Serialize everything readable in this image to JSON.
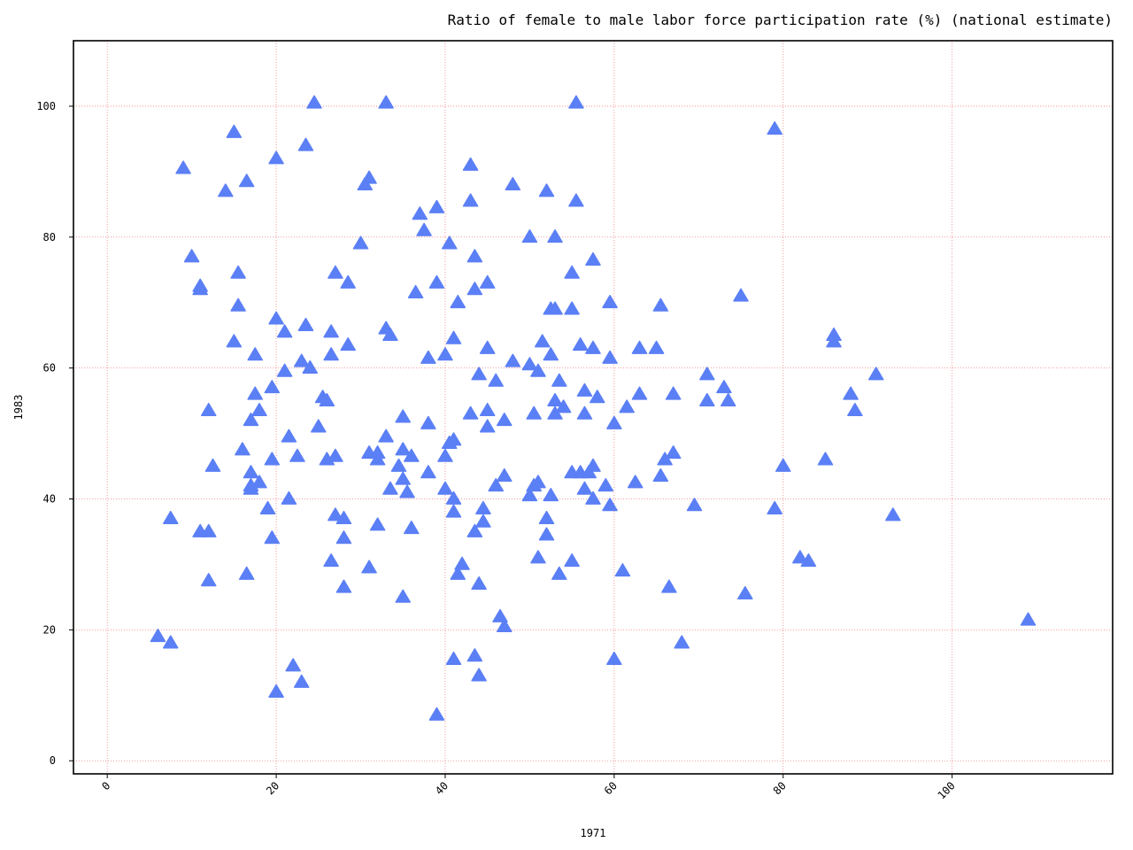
{
  "chart_data": {
    "type": "scatter",
    "title": "Ratio of female to male labor force participation rate (%) (national estimate)",
    "xlabel": "1971",
    "ylabel": "1983",
    "xlim": [
      -4,
      119
    ],
    "ylim": [
      -2,
      110
    ],
    "xticks": [
      0,
      20,
      40,
      60,
      80,
      100
    ],
    "yticks": [
      0,
      20,
      40,
      60,
      80,
      100
    ],
    "grid": true,
    "marker": "triangle-up",
    "color": "#5b7ff5",
    "points": [
      [
        6,
        19
      ],
      [
        7.5,
        18
      ],
      [
        7.5,
        37
      ],
      [
        9,
        90.5
      ],
      [
        10,
        77
      ],
      [
        11,
        72
      ],
      [
        11,
        72.5
      ],
      [
        11,
        35
      ],
      [
        12,
        35
      ],
      [
        12,
        53.5
      ],
      [
        12,
        27.5
      ],
      [
        12.5,
        45
      ],
      [
        14,
        87
      ],
      [
        15,
        96
      ],
      [
        15,
        64
      ],
      [
        15.5,
        74.5
      ],
      [
        15.5,
        69.5
      ],
      [
        16,
        47.5
      ],
      [
        16.5,
        88.5
      ],
      [
        16.5,
        28.5
      ],
      [
        17,
        52
      ],
      [
        17,
        44
      ],
      [
        17,
        42
      ],
      [
        17,
        41.5
      ],
      [
        17.5,
        56
      ],
      [
        17.5,
        62
      ],
      [
        18,
        53.5
      ],
      [
        18,
        42.5
      ],
      [
        19,
        38.5
      ],
      [
        19.5,
        34
      ],
      [
        19.5,
        57
      ],
      [
        19.5,
        46
      ],
      [
        20,
        92
      ],
      [
        20,
        67.5
      ],
      [
        20,
        10.5
      ],
      [
        21,
        59.5
      ],
      [
        21,
        65.5
      ],
      [
        21.5,
        40
      ],
      [
        21.5,
        49.5
      ],
      [
        22,
        14.5
      ],
      [
        22.5,
        46.5
      ],
      [
        23,
        61
      ],
      [
        23,
        12
      ],
      [
        23.5,
        66.5
      ],
      [
        23.5,
        94
      ],
      [
        24,
        60
      ],
      [
        24.5,
        100.5
      ],
      [
        25,
        51
      ],
      [
        25.5,
        55.5
      ],
      [
        26,
        55
      ],
      [
        26,
        46
      ],
      [
        26.5,
        62
      ],
      [
        26.5,
        65.5
      ],
      [
        27,
        46.5
      ],
      [
        26.5,
        30.5
      ],
      [
        27,
        37.5
      ],
      [
        27,
        74.5
      ],
      [
        28,
        26.5
      ],
      [
        28,
        34
      ],
      [
        28,
        37
      ],
      [
        28.5,
        63.5
      ],
      [
        28.5,
        73
      ],
      [
        30,
        79
      ],
      [
        30.5,
        88
      ],
      [
        31,
        47
      ],
      [
        31,
        89
      ],
      [
        31,
        29.5
      ],
      [
        32,
        36
      ],
      [
        32,
        47
      ],
      [
        32,
        46
      ],
      [
        33,
        49.5
      ],
      [
        33,
        100.5
      ],
      [
        33,
        66
      ],
      [
        33.5,
        65
      ],
      [
        33.5,
        41.5
      ],
      [
        34.5,
        45
      ],
      [
        35,
        52.5
      ],
      [
        35,
        47.5
      ],
      [
        35,
        43
      ],
      [
        35,
        25
      ],
      [
        35.5,
        41
      ],
      [
        36,
        46.5
      ],
      [
        36,
        35.5
      ],
      [
        36.5,
        71.5
      ],
      [
        37,
        83.5
      ],
      [
        37.5,
        81
      ],
      [
        38,
        51.5
      ],
      [
        38,
        44
      ],
      [
        38,
        61.5
      ],
      [
        39,
        84.5
      ],
      [
        39,
        73
      ],
      [
        39,
        7
      ],
      [
        40,
        62
      ],
      [
        40,
        41.5
      ],
      [
        40,
        46.5
      ],
      [
        40.5,
        48.5
      ],
      [
        40.5,
        79
      ],
      [
        41,
        64.5
      ],
      [
        41,
        40
      ],
      [
        41,
        38
      ],
      [
        41,
        49
      ],
      [
        41,
        15.5
      ],
      [
        41.5,
        28.5
      ],
      [
        41.5,
        70
      ],
      [
        42,
        30
      ],
      [
        43,
        53
      ],
      [
        43,
        85.5
      ],
      [
        43,
        91
      ],
      [
        43.5,
        77
      ],
      [
        43.5,
        72
      ],
      [
        43.5,
        35
      ],
      [
        43.5,
        16
      ],
      [
        44,
        27
      ],
      [
        44,
        13
      ],
      [
        44,
        59
      ],
      [
        44.5,
        36.5
      ],
      [
        44.5,
        38.5
      ],
      [
        45,
        63
      ],
      [
        45,
        51
      ],
      [
        45,
        53.5
      ],
      [
        45,
        73
      ],
      [
        46,
        42
      ],
      [
        46,
        58
      ],
      [
        46.5,
        22
      ],
      [
        47,
        20.5
      ],
      [
        47,
        43.5
      ],
      [
        47,
        52
      ],
      [
        48,
        61
      ],
      [
        48,
        88
      ],
      [
        50,
        80
      ],
      [
        50,
        60.5
      ],
      [
        50,
        40.5
      ],
      [
        50.5,
        42
      ],
      [
        50.5,
        53
      ],
      [
        51,
        31
      ],
      [
        51,
        59.5
      ],
      [
        51,
        42.5
      ],
      [
        51.5,
        64
      ],
      [
        52,
        87
      ],
      [
        52,
        37
      ],
      [
        52,
        34.5
      ],
      [
        52.5,
        69
      ],
      [
        52.5,
        62
      ],
      [
        52.5,
        40.5
      ],
      [
        53,
        80
      ],
      [
        53,
        53
      ],
      [
        53,
        55
      ],
      [
        53,
        69
      ],
      [
        53.5,
        58
      ],
      [
        53.5,
        28.5
      ],
      [
        54,
        54
      ],
      [
        55,
        74.5
      ],
      [
        55,
        69
      ],
      [
        55,
        44
      ],
      [
        55,
        30.5
      ],
      [
        55.5,
        100.5
      ],
      [
        55.5,
        85.5
      ],
      [
        56,
        44
      ],
      [
        56,
        63.5
      ],
      [
        56.5,
        56.5
      ],
      [
        56.5,
        41.5
      ],
      [
        56.5,
        53
      ],
      [
        57,
        44
      ],
      [
        57.5,
        76.5
      ],
      [
        57.5,
        63
      ],
      [
        57.5,
        40
      ],
      [
        57.5,
        45
      ],
      [
        58,
        55.5
      ],
      [
        59,
        42
      ],
      [
        59.5,
        70
      ],
      [
        59.5,
        61.5
      ],
      [
        59.5,
        39
      ],
      [
        60,
        15.5
      ],
      [
        60,
        51.5
      ],
      [
        61,
        29
      ],
      [
        61.5,
        54
      ],
      [
        62.5,
        42.5
      ],
      [
        63,
        63
      ],
      [
        63,
        56
      ],
      [
        65,
        63
      ],
      [
        65.5,
        69.5
      ],
      [
        65.5,
        43.5
      ],
      [
        66,
        46
      ],
      [
        66.5,
        26.5
      ],
      [
        67,
        47
      ],
      [
        67,
        56
      ],
      [
        68,
        18
      ],
      [
        69.5,
        39
      ],
      [
        71,
        59
      ],
      [
        71,
        55
      ],
      [
        73,
        57
      ],
      [
        73.5,
        55
      ],
      [
        75,
        71
      ],
      [
        75.5,
        25.5
      ],
      [
        79,
        38.5
      ],
      [
        79,
        96.5
      ],
      [
        80,
        45
      ],
      [
        82,
        31
      ],
      [
        83,
        30.5
      ],
      [
        85,
        46
      ],
      [
        86,
        65
      ],
      [
        86,
        64
      ],
      [
        88,
        56
      ],
      [
        88.5,
        53.5
      ],
      [
        91,
        59
      ],
      [
        93,
        37.5
      ],
      [
        109,
        21.5
      ]
    ]
  }
}
